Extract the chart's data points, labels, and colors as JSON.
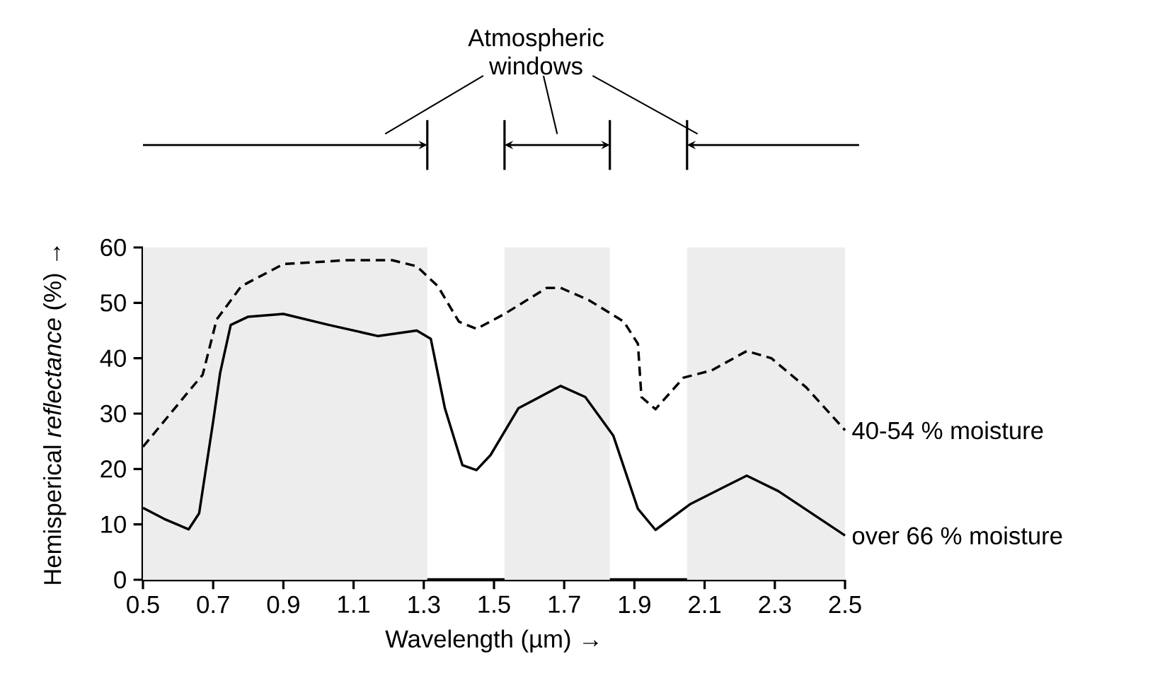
{
  "chart_data": {
    "type": "line",
    "xlabel": "Wavelength (µm) →",
    "ylabel": "Hemisperical *reflectance* (%) →",
    "xlim": [
      0.5,
      2.5
    ],
    "xticks": [
      0.5,
      0.7,
      0.9,
      1.1,
      1.3,
      1.5,
      1.7,
      1.9,
      2.1,
      2.3,
      2.5
    ],
    "ylim": [
      0,
      60
    ],
    "yticks": [
      0,
      10,
      20,
      30,
      40,
      50,
      60
    ],
    "grid": false,
    "legend": false,
    "series": [
      {
        "name": "40-54 % moisture",
        "color": "#000000",
        "line_style": "dashed",
        "x": [
          0.5,
          0.63,
          0.67,
          0.71,
          0.78,
          0.9,
          1.08,
          1.21,
          1.28,
          1.34,
          1.4,
          1.45,
          1.53,
          1.65,
          1.69,
          1.77,
          1.87,
          1.91,
          1.92,
          1.96,
          2.04,
          2.12,
          2.22,
          2.29,
          2.39,
          2.5
        ],
        "values": [
          24,
          34,
          37,
          47,
          53,
          57,
          57.7,
          57.7,
          56.6,
          53,
          46.6,
          45.3,
          48,
          52.7,
          52.7,
          50.5,
          46.6,
          42.6,
          33,
          30.8,
          36.5,
          37.8,
          41.3,
          40,
          34.7,
          27
        ]
      },
      {
        "name": "over 66 % moisture",
        "color": "#000000",
        "line_style": "solid",
        "x": [
          0.5,
          0.56,
          0.63,
          0.66,
          0.7,
          0.72,
          0.75,
          0.8,
          0.9,
          1.03,
          1.17,
          1.28,
          1.32,
          1.36,
          1.41,
          1.45,
          1.49,
          1.57,
          1.69,
          1.76,
          1.84,
          1.91,
          1.96,
          2.06,
          2.22,
          2.31,
          2.5
        ],
        "values": [
          13,
          11,
          9.1,
          12,
          28.6,
          37.4,
          46,
          47.5,
          48,
          46,
          44,
          45,
          43.5,
          31,
          20.7,
          19.8,
          22.5,
          31,
          35,
          33,
          26,
          12.8,
          9,
          13.7,
          18.8,
          16,
          8
        ]
      }
    ],
    "bands": [
      {
        "axis": "x",
        "from": 0.5,
        "to": 1.31
      },
      {
        "axis": "x",
        "from": 1.53,
        "to": 1.83
      },
      {
        "axis": "x",
        "from": 2.05,
        "to": 2.5
      }
    ],
    "annotations": [
      "Atmospheric windows"
    ]
  }
}
